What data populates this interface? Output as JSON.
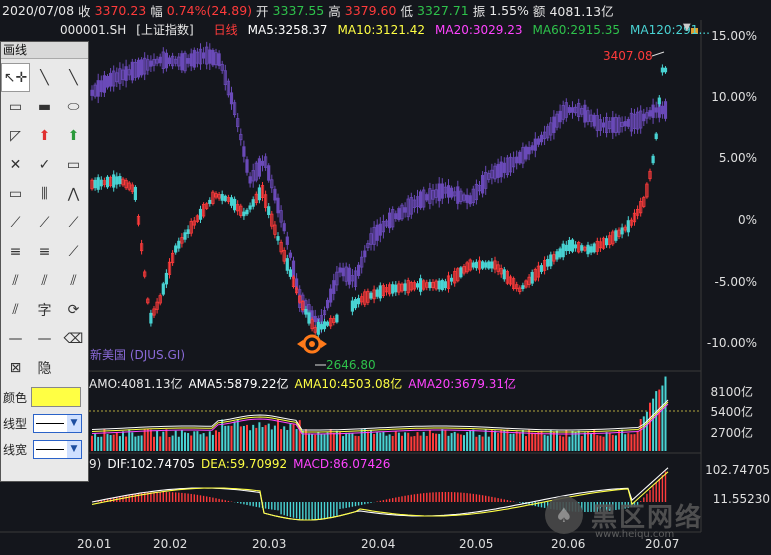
{
  "infobar": {
    "date": "2020/07/08",
    "close_label": "收",
    "close_value": "3370.23",
    "change_label": "幅",
    "change_value": "0.74%(24.89)",
    "open_label": "开",
    "open_value": "3337.55",
    "high_label": "高",
    "high_value": "3379.60",
    "low_label": "低",
    "low_value": "3327.71",
    "amp_label": "振",
    "amp_value": "1.55%",
    "amount_label": "额",
    "amount_value": "4081.13亿"
  },
  "price_panel": {
    "symbol": "000001.SH",
    "index_name": "[上证指数]",
    "period": "日线",
    "ma5": "MA5:3258.37",
    "ma10": "MA10:3121.42",
    "ma20": "MA20:3029.23",
    "ma60": "MA60:2915.35",
    "ma120": "MA120:291...",
    "high_marker": "3407.08",
    "low_marker": "2646.80",
    "overlay_name": "新美国 (DJUS.GI)",
    "y_ticks": [
      "15.00%",
      "10.00%",
      "5.00%",
      "0%",
      "-5.00%",
      "-10.00%"
    ]
  },
  "volume_panel": {
    "amo": "AMO:4081.13亿",
    "ama5": "AMA5:5879.22亿",
    "ama10": "AMA10:4503.08亿",
    "ama20": "AMA20:3679.31亿",
    "y_ticks": [
      "8100亿",
      "5400亿",
      "2700亿"
    ]
  },
  "macd_panel": {
    "params": "9)",
    "dif": "DIF:102.74705",
    "dea": "DEA:59.70992",
    "macd": "MACD:86.07426",
    "y_ticks": [
      "102.74705",
      "11.55230"
    ]
  },
  "x_ticks": [
    "20.01",
    "20.02",
    "20.03",
    "20.04",
    "20.05",
    "20.06",
    "20.07"
  ],
  "toolbox": {
    "title": "画线",
    "tools": [
      "↖✛",
      "╲",
      "╲",
      "▭",
      "▬",
      "⬭",
      "◸",
      "⬆",
      "⬆",
      "✕",
      "✓",
      "▭",
      "▭",
      "⫼",
      "⋀",
      "⟋",
      "⟋",
      "⟋",
      "≡",
      "≡",
      "⟋",
      "⫽",
      "⫽",
      "⫽",
      "⫽",
      "字",
      "⟳",
      "—",
      "—",
      "⌫",
      "⊠",
      "隐"
    ],
    "color_label": "颜色",
    "linetype_label": "线型",
    "linewidth_label": "线宽"
  },
  "colors": {
    "up": "#ff3b3b",
    "down": "#49d3d3",
    "overlay": "#6a4ab8",
    "ma5": "#ffffff",
    "ma10": "#ffff44",
    "ma20": "#ff44ff",
    "ma60": "#2ec24b",
    "ma120": "#49d3d3"
  },
  "watermark": {
    "text": "黑区网络",
    "url": "www.heiqu.com"
  }
}
